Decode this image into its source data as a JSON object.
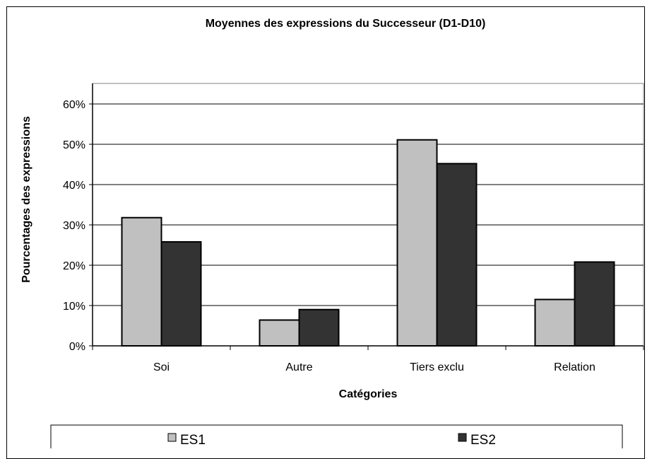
{
  "chart_data": {
    "type": "bar",
    "title": "Moyennes des expressions du Successeur (D1-D10)",
    "xlabel": "Catégories",
    "ylabel": "Pourcentages des expressions",
    "categories": [
      "Soi",
      "Autre",
      "Tiers exclu",
      "Relation"
    ],
    "series": [
      {
        "name": "ES1",
        "values": [
          31.8,
          6.4,
          51.1,
          11.5
        ],
        "color": "#c0c0c0"
      },
      {
        "name": "ES2",
        "values": [
          25.8,
          9.0,
          45.2,
          20.8
        ],
        "color": "#333333"
      }
    ],
    "ylim": [
      0,
      60
    ],
    "yticks": [
      "0%",
      "10%",
      "20%",
      "30%",
      "40%",
      "50%",
      "60%"
    ],
    "grid": true,
    "legend_position": "bottom"
  }
}
